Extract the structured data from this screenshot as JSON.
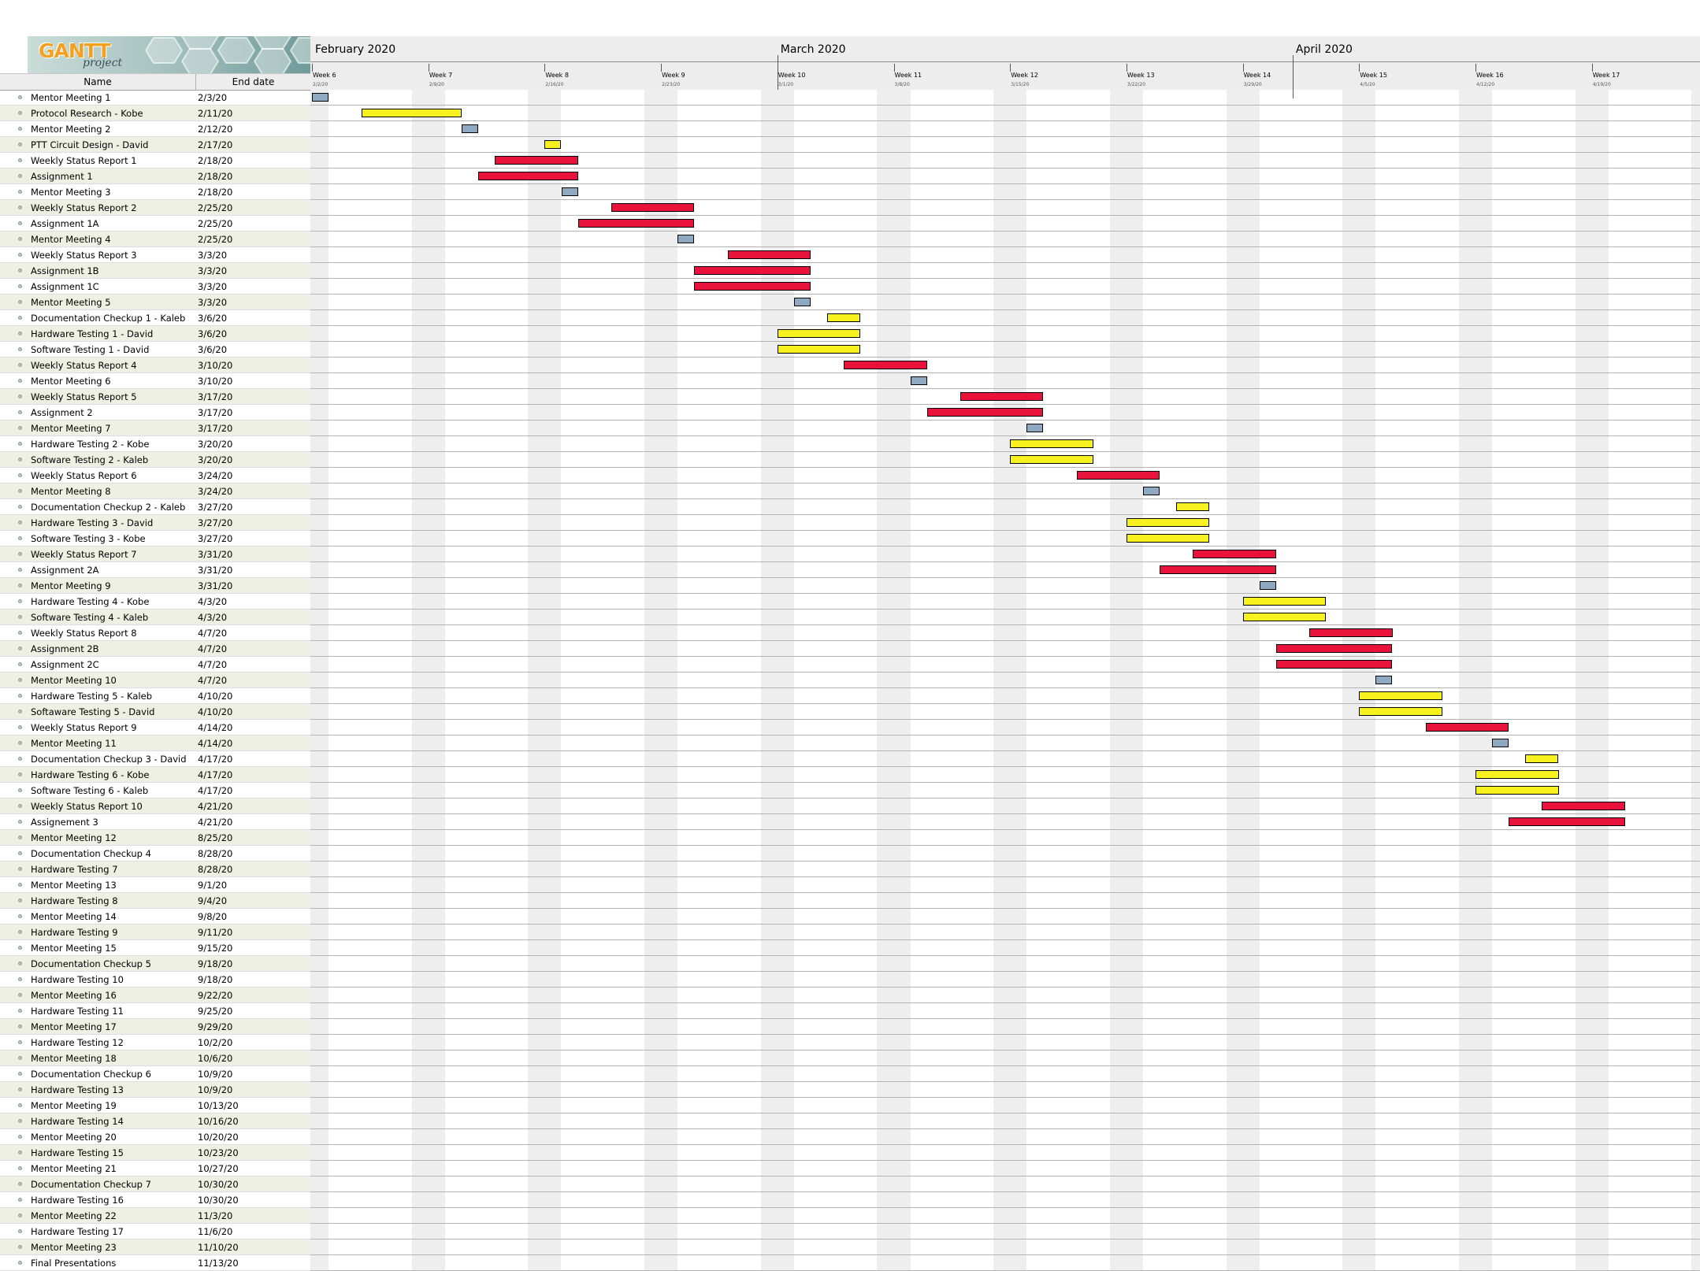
{
  "logo": {
    "brand": "GANTT",
    "sub": "project"
  },
  "table": {
    "headers": {
      "name": "Name",
      "end": "End date"
    }
  },
  "timeline": {
    "months": [
      "February 2020",
      "March 2020",
      "April 2020"
    ],
    "weeks": [
      {
        "label": "Week 6",
        "date": "2/2/20"
      },
      {
        "label": "Week 7",
        "date": "2/9/20"
      },
      {
        "label": "Week 8",
        "date": "2/16/20"
      },
      {
        "label": "Week 9",
        "date": "2/23/20"
      },
      {
        "label": "Week 10",
        "date": "3/1/20"
      },
      {
        "label": "Week 11",
        "date": "3/8/20"
      },
      {
        "label": "Week 12",
        "date": "3/15/20"
      },
      {
        "label": "Week 13",
        "date": "3/22/20"
      },
      {
        "label": "Week 14",
        "date": "3/29/20"
      },
      {
        "label": "Week 15",
        "date": "4/5/20"
      },
      {
        "label": "Week 16",
        "date": "4/12/20"
      },
      {
        "label": "Week 17",
        "date": "4/19/20"
      }
    ]
  },
  "colors": {
    "meeting": "#8fa9c2",
    "task": "#f8f120",
    "report": "#e8123a",
    "row_alt": "#eef0e4",
    "weekend": "#eeeeee"
  },
  "tasks": [
    {
      "name": "Mentor Meeting 1",
      "end": "2/3/20",
      "type": "meeting",
      "start": "2/2/20",
      "finish": "2/3/20"
    },
    {
      "name": "Protocol Research - Kobe",
      "end": "2/11/20",
      "type": "task",
      "start": "2/5/20",
      "finish": "2/11/20"
    },
    {
      "name": "Mentor Meeting 2",
      "end": "2/12/20",
      "type": "meeting",
      "start": "2/11/20",
      "finish": "2/12/20"
    },
    {
      "name": "PTT Circuit Design - David",
      "end": "2/17/20",
      "type": "task",
      "start": "2/16/20",
      "finish": "2/17/20"
    },
    {
      "name": "Weekly Status Report 1",
      "end": "2/18/20",
      "type": "report",
      "start": "2/13/20",
      "finish": "2/18/20"
    },
    {
      "name": "Assignment 1",
      "end": "2/18/20",
      "type": "report",
      "start": "2/12/20",
      "finish": "2/18/20"
    },
    {
      "name": "Mentor Meeting 3",
      "end": "2/18/20",
      "type": "meeting",
      "start": "2/17/20",
      "finish": "2/18/20"
    },
    {
      "name": "Weekly Status Report 2",
      "end": "2/25/20",
      "type": "report",
      "start": "2/20/20",
      "finish": "2/25/20"
    },
    {
      "name": "Assignment 1A",
      "end": "2/25/20",
      "type": "report",
      "start": "2/18/20",
      "finish": "2/25/20"
    },
    {
      "name": "Mentor Meeting 4",
      "end": "2/25/20",
      "type": "meeting",
      "start": "2/24/20",
      "finish": "2/25/20"
    },
    {
      "name": "Weekly Status Report 3",
      "end": "3/3/20",
      "type": "report",
      "start": "2/27/20",
      "finish": "3/3/20"
    },
    {
      "name": "Assignment 1B",
      "end": "3/3/20",
      "type": "report",
      "start": "2/25/20",
      "finish": "3/3/20"
    },
    {
      "name": "Assignment 1C",
      "end": "3/3/20",
      "type": "report",
      "start": "2/25/20",
      "finish": "3/3/20"
    },
    {
      "name": "Mentor Meeting 5",
      "end": "3/3/20",
      "type": "meeting",
      "start": "3/2/20",
      "finish": "3/3/20"
    },
    {
      "name": "Documentation Checkup 1 - Kaleb",
      "end": "3/6/20",
      "type": "task",
      "start": "3/4/20",
      "finish": "3/6/20"
    },
    {
      "name": "Hardware Testing 1 - David",
      "end": "3/6/20",
      "type": "task",
      "start": "3/1/20",
      "finish": "3/6/20"
    },
    {
      "name": "Software Testing 1 - David",
      "end": "3/6/20",
      "type": "task",
      "start": "3/1/20",
      "finish": "3/6/20"
    },
    {
      "name": "Weekly Status Report 4",
      "end": "3/10/20",
      "type": "report",
      "start": "3/5/20",
      "finish": "3/10/20"
    },
    {
      "name": "Mentor Meeting 6",
      "end": "3/10/20",
      "type": "meeting",
      "start": "3/9/20",
      "finish": "3/10/20"
    },
    {
      "name": "Weekly Status Report 5",
      "end": "3/17/20",
      "type": "report",
      "start": "3/12/20",
      "finish": "3/17/20"
    },
    {
      "name": "Assignment 2",
      "end": "3/17/20",
      "type": "report",
      "start": "3/10/20",
      "finish": "3/17/20"
    },
    {
      "name": "Mentor Meeting 7",
      "end": "3/17/20",
      "type": "meeting",
      "start": "3/16/20",
      "finish": "3/17/20"
    },
    {
      "name": "Hardware Testing 2 - Kobe",
      "end": "3/20/20",
      "type": "task",
      "start": "3/15/20",
      "finish": "3/20/20"
    },
    {
      "name": "Software Testing 2 - Kaleb",
      "end": "3/20/20",
      "type": "task",
      "start": "3/15/20",
      "finish": "3/20/20"
    },
    {
      "name": "Weekly Status Report 6",
      "end": "3/24/20",
      "type": "report",
      "start": "3/19/20",
      "finish": "3/24/20"
    },
    {
      "name": "Mentor Meeting 8",
      "end": "3/24/20",
      "type": "meeting",
      "start": "3/23/20",
      "finish": "3/24/20"
    },
    {
      "name": "Documentation Checkup 2 - Kaleb",
      "end": "3/27/20",
      "type": "task",
      "start": "3/25/20",
      "finish": "3/27/20"
    },
    {
      "name": "Hardware Testing 3 - David",
      "end": "3/27/20",
      "type": "task",
      "start": "3/22/20",
      "finish": "3/27/20"
    },
    {
      "name": "Software Testing 3 - Kobe",
      "end": "3/27/20",
      "type": "task",
      "start": "3/22/20",
      "finish": "3/27/20"
    },
    {
      "name": "Weekly Status Report 7",
      "end": "3/31/20",
      "type": "report",
      "start": "3/26/20",
      "finish": "3/31/20"
    },
    {
      "name": "Assignment 2A",
      "end": "3/31/20",
      "type": "report",
      "start": "3/24/20",
      "finish": "3/31/20"
    },
    {
      "name": "Mentor Meeting 9",
      "end": "3/31/20",
      "type": "meeting",
      "start": "3/30/20",
      "finish": "3/31/20"
    },
    {
      "name": "Hardware Testing 4 - Kobe",
      "end": "4/3/20",
      "type": "task",
      "start": "3/29/20",
      "finish": "4/3/20"
    },
    {
      "name": "Software Testing 4 - Kaleb",
      "end": "4/3/20",
      "type": "task",
      "start": "3/29/20",
      "finish": "4/3/20"
    },
    {
      "name": "Weekly Status Report 8",
      "end": "4/7/20",
      "type": "report",
      "start": "4/2/20",
      "finish": "4/7/20"
    },
    {
      "name": "Assignment 2B",
      "end": "4/7/20",
      "type": "report",
      "start": "3/31/20",
      "finish": "4/7/20"
    },
    {
      "name": "Assignment 2C",
      "end": "4/7/20",
      "type": "report",
      "start": "3/31/20",
      "finish": "4/7/20"
    },
    {
      "name": "Mentor Meeting 10",
      "end": "4/7/20",
      "type": "meeting",
      "start": "4/6/20",
      "finish": "4/7/20"
    },
    {
      "name": "Hardware Testing 5 - Kaleb",
      "end": "4/10/20",
      "type": "task",
      "start": "4/5/20",
      "finish": "4/10/20"
    },
    {
      "name": "Softaware Testing 5 - David",
      "end": "4/10/20",
      "type": "task",
      "start": "4/5/20",
      "finish": "4/10/20"
    },
    {
      "name": "Weekly Status Report 9",
      "end": "4/14/20",
      "type": "report",
      "start": "4/9/20",
      "finish": "4/14/20"
    },
    {
      "name": "Mentor Meeting 11",
      "end": "4/14/20",
      "type": "meeting",
      "start": "4/13/20",
      "finish": "4/14/20"
    },
    {
      "name": "Documentation Checkup 3 - David",
      "end": "4/17/20",
      "type": "task",
      "start": "4/15/20",
      "finish": "4/17/20"
    },
    {
      "name": "Hardware Testing 6 - Kobe",
      "end": "4/17/20",
      "type": "task",
      "start": "4/12/20",
      "finish": "4/17/20"
    },
    {
      "name": "Software Testing 6 - Kaleb",
      "end": "4/17/20",
      "type": "task",
      "start": "4/12/20",
      "finish": "4/17/20"
    },
    {
      "name": "Weekly Status Report 10",
      "end": "4/21/20",
      "type": "report",
      "start": "4/16/20",
      "finish": "4/21/20"
    },
    {
      "name": "Assignement 3",
      "end": "4/21/20",
      "type": "report",
      "start": "4/14/20",
      "finish": "4/21/20"
    },
    {
      "name": "Mentor Meeting 12",
      "end": "8/25/20"
    },
    {
      "name": "Documentation Checkup 4",
      "end": "8/28/20"
    },
    {
      "name": "Hardware Testing 7",
      "end": "8/28/20"
    },
    {
      "name": "Mentor Meeting 13",
      "end": "9/1/20"
    },
    {
      "name": "Hardware Testing 8",
      "end": "9/4/20"
    },
    {
      "name": "Mentor Meeting 14",
      "end": "9/8/20"
    },
    {
      "name": "Hardware Testing 9",
      "end": "9/11/20"
    },
    {
      "name": "Mentor Meeting 15",
      "end": "9/15/20"
    },
    {
      "name": "Documentation Checkup 5",
      "end": "9/18/20"
    },
    {
      "name": "Hardware Testing 10",
      "end": "9/18/20"
    },
    {
      "name": "Mentor Meeting 16",
      "end": "9/22/20"
    },
    {
      "name": "Hardware Testing 11",
      "end": "9/25/20"
    },
    {
      "name": "Mentor Meeting 17",
      "end": "9/29/20"
    },
    {
      "name": "Hardware Testing 12",
      "end": "10/2/20"
    },
    {
      "name": "Mentor Meeting 18",
      "end": "10/6/20"
    },
    {
      "name": "Documentation Checkup 6",
      "end": "10/9/20"
    },
    {
      "name": "Hardware Testing 13",
      "end": "10/9/20"
    },
    {
      "name": "Mentor Meeting 19",
      "end": "10/13/20"
    },
    {
      "name": "Hardware Testing 14",
      "end": "10/16/20"
    },
    {
      "name": "Mentor Meeting 20",
      "end": "10/20/20"
    },
    {
      "name": "Hardware Testing 15",
      "end": "10/23/20"
    },
    {
      "name": "Mentor Meeting 21",
      "end": "10/27/20"
    },
    {
      "name": "Documentation Checkup 7",
      "end": "10/30/20"
    },
    {
      "name": "Hardware Testing 16",
      "end": "10/30/20"
    },
    {
      "name": "Mentor Meeting 22",
      "end": "11/3/20"
    },
    {
      "name": "Hardware Testing 17",
      "end": "11/6/20"
    },
    {
      "name": "Mentor Meeting 23",
      "end": "11/10/20"
    },
    {
      "name": "Final Presentations",
      "end": "11/13/20"
    }
  ]
}
